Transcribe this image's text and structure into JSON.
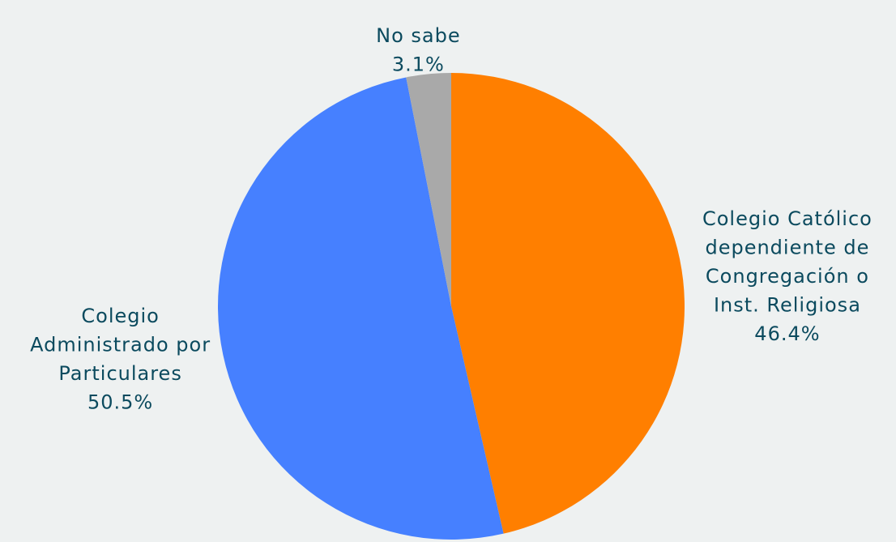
{
  "chart_data": {
    "type": "pie",
    "categories": [
      "Colegio Católico dependiente de Congregación o Inst. Religiosa",
      "Colegio Administrado por Particulares",
      "No sabe"
    ],
    "values": [
      46.4,
      50.5,
      3.1
    ],
    "value_labels": [
      "46.4%",
      "50.5%",
      "3.1%"
    ],
    "colors": [
      "#ff7f00",
      "#4680ff",
      "#a9a9a9"
    ]
  }
}
